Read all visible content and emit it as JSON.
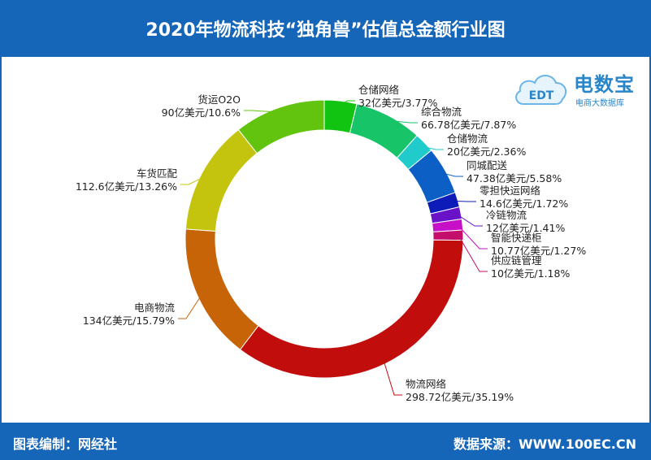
{
  "header": {
    "title": "2020年物流科技“独角兽”估值总金额行业图"
  },
  "logo": {
    "name": "电数宝",
    "sub": "电商大数据库",
    "mark": "EDT"
  },
  "footer": {
    "left": "图表编制：网经社",
    "right": "数据来源：WWW.100EC.CN"
  },
  "chart_data": {
    "type": "pie",
    "donut": true,
    "slices": [
      {
        "label": "仓储网络",
        "value": 32,
        "text": "32亿美元/3.77%",
        "color": "#12c412"
      },
      {
        "label": "综合物流",
        "value": 66.78,
        "text": "66.78亿美元/7.87%",
        "color": "#17c468"
      },
      {
        "label": "仓储物流",
        "value": 20,
        "text": "20亿美元/2.36%",
        "color": "#21cbcb"
      },
      {
        "label": "同城配送",
        "value": 47.38,
        "text": "47.38亿美元/5.58%",
        "color": "#0c5fc4"
      },
      {
        "label": "零担快运网络",
        "value": 14.6,
        "text": "14.6亿美元/1.72%",
        "color": "#0d1bb8"
      },
      {
        "label": "冷链物流",
        "value": 12,
        "text": "12亿美元/1.41%",
        "color": "#6a12c8"
      },
      {
        "label": "智能快递柜",
        "value": 10.77,
        "text": "10.77亿美元/1.27%",
        "color": "#c60fc6"
      },
      {
        "label": "供应链管理",
        "value": 10,
        "text": "10亿美元/1.18%",
        "color": "#c40f6a"
      },
      {
        "label": "物流网络",
        "value": 298.72,
        "text": "298.72亿美元/35.19%",
        "color": "#c20d0d"
      },
      {
        "label": "电商物流",
        "value": 134,
        "text": "134亿美元/15.79%",
        "color": "#c86408"
      },
      {
        "label": "车货匹配",
        "value": 112.6,
        "text": "112.6亿美元/13.26%",
        "color": "#c4c40e"
      },
      {
        "label": "货运O2O",
        "value": 90,
        "text": "90亿美元/10.6%",
        "color": "#62c40e"
      }
    ]
  }
}
